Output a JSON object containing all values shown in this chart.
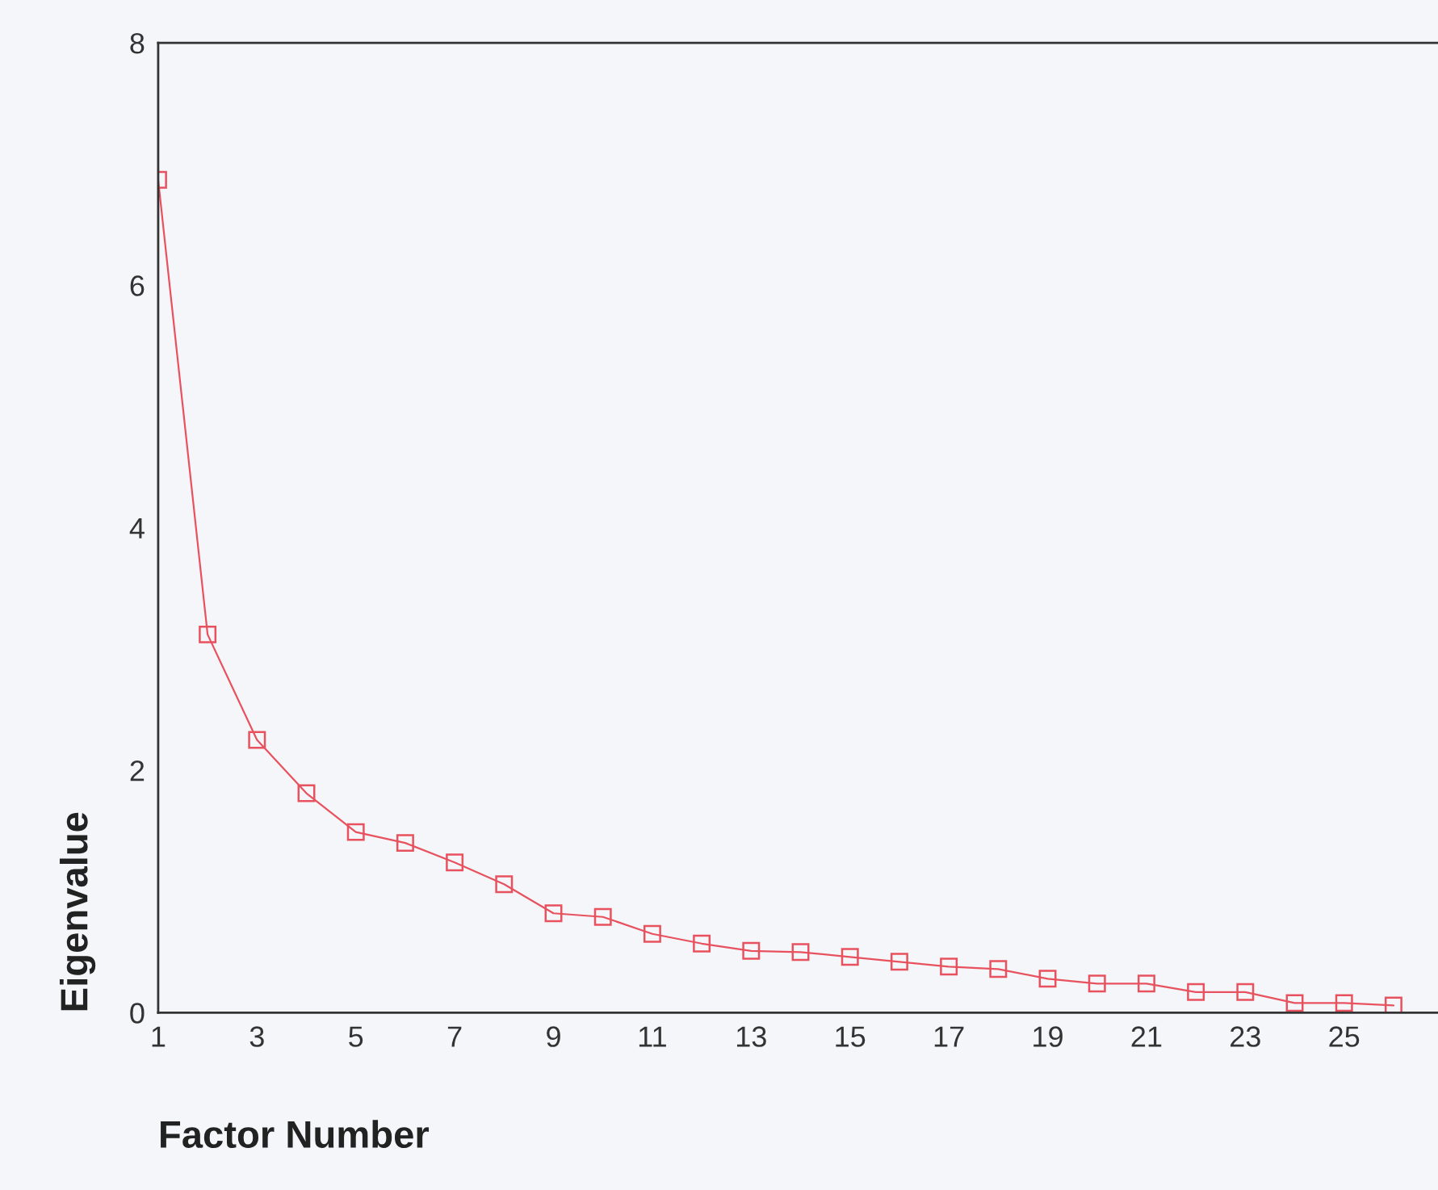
{
  "chart_data": {
    "type": "line",
    "xlabel": "Factor Number",
    "ylabel": "Eigenvalue",
    "x": [
      1,
      2,
      3,
      4,
      5,
      6,
      7,
      8,
      9,
      10,
      11,
      12,
      13,
      14,
      15,
      16,
      17,
      18,
      19,
      20,
      21,
      22,
      23,
      24,
      25,
      26
    ],
    "series": [
      {
        "color": "#e8525e",
        "values": [
          6.87,
          3.12,
          2.25,
          1.81,
          1.49,
          1.4,
          1.24,
          1.06,
          0.82,
          0.79,
          0.65,
          0.57,
          0.51,
          0.5,
          0.46,
          0.42,
          0.38,
          0.36,
          0.28,
          0.24,
          0.24,
          0.17,
          0.17,
          0.08,
          0.08,
          0.06
        ]
      }
    ],
    "xlim": [
      1,
      26.9
    ],
    "ylim": [
      0,
      8
    ],
    "xticks": [
      1,
      3,
      5,
      7,
      9,
      11,
      13,
      15,
      17,
      19,
      21,
      23,
      25
    ],
    "yticks": [
      0,
      2,
      4,
      6,
      8
    ],
    "marker": "square",
    "line_style": "solid",
    "grid": false,
    "legend": false
  }
}
